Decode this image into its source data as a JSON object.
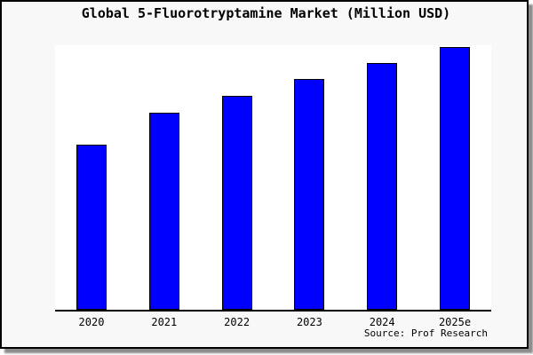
{
  "frame": {
    "title": "Global 5-Fluorotryptamine Market (Million USD)",
    "source": "Source: Prof Research"
  },
  "colors": {
    "bar_fill": "#0000FF",
    "bar_edge": "#000000",
    "card_background": "#f8f8f8",
    "plot_background": "#ffffff",
    "border": "#000000",
    "shadow": "#8c8c8c"
  },
  "chart_data": {
    "type": "bar",
    "title": "Global 5-Fluorotryptamine Market (Million USD)",
    "categories": [
      "2020",
      "2021",
      "2022",
      "2023",
      "2024",
      "2025e"
    ],
    "values": [
      62.8,
      75.2,
      81.5,
      87.9,
      94.0,
      100.0
    ],
    "values_note": "no y-axis tick labels shown in chart; values are relative bar heights with the 2025e bar normalized to 100",
    "xlabel": "",
    "ylabel": "",
    "ylim": [
      0,
      100.7
    ],
    "grid": false,
    "legend": false,
    "y_axis_labels_visible": false,
    "source_caption": "Source: Prof Research"
  }
}
